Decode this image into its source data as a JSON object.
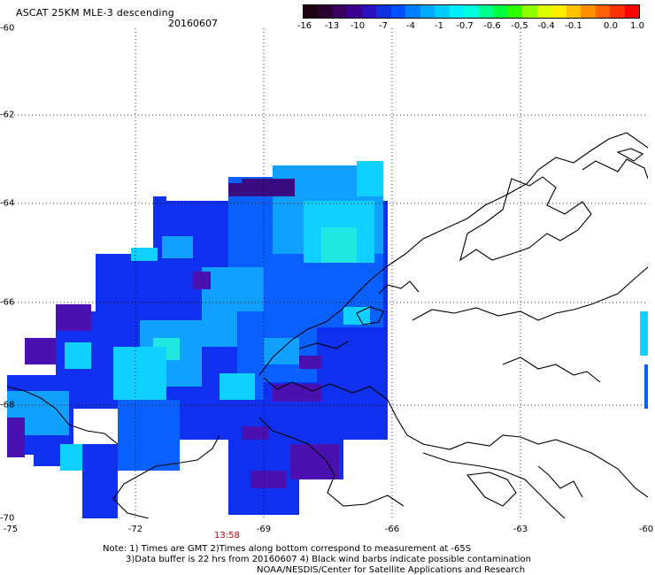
{
  "header": {
    "title": "ASCAT 25KM MLE-3 descending",
    "date": "20160607"
  },
  "colorbar": {
    "labels": [
      "-16",
      "-13",
      "-10",
      "-7",
      "-4",
      "-1",
      "-0.7",
      "-0.6",
      "-0.5",
      "-0.4",
      "-0.1",
      "0.0",
      "1.0"
    ],
    "colors": [
      "#1a0010",
      "#2a0030",
      "#3a0060",
      "#3c0090",
      "#2a10c0",
      "#1030e0",
      "#0050ff",
      "#0080ff",
      "#00aaff",
      "#00ccff",
      "#00eeff",
      "#00ffdd",
      "#00ff90",
      "#00ff40",
      "#30ff00",
      "#90ff00",
      "#ddff00",
      "#ffee00",
      "#ffc000",
      "#ff9000",
      "#ff6000",
      "#ff3000",
      "#ff0000"
    ]
  },
  "axes": {
    "lat_labels": [
      "-60",
      "-62",
      "-64",
      "-66",
      "-68",
      "-70"
    ],
    "lon_labels": [
      "-75",
      "-72",
      "-69",
      "-66",
      "-63",
      "-60"
    ]
  },
  "time_label": "13:58",
  "notes": {
    "line1": "Note: 1) Times are GMT 2)Times along bottom correspond to measurement at -65S",
    "line2": "3)Data buffer is 22 hrs from 20160607 4) Black wind barbs indicate possible contamination",
    "line3": "NOAA/NESDIS/Center for Satellite Applications and Research"
  },
  "palette": {
    "deep_purple": "#3a0a80",
    "purple": "#4a10b0",
    "blue": "#1030f0",
    "med_blue": "#0a60ff",
    "sky_blue": "#10a0ff",
    "cyan": "#10d0ff",
    "teal": "#20e8e0"
  }
}
